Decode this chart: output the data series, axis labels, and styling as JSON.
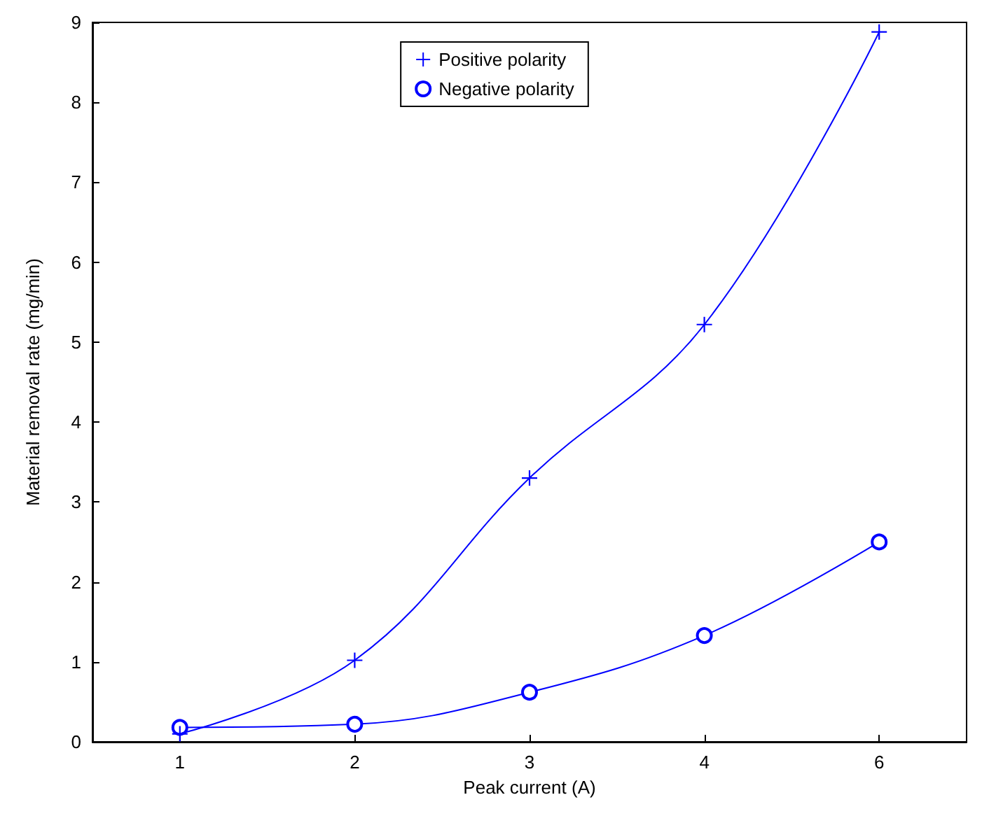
{
  "chart_data": {
    "type": "line",
    "xlabel": "Peak current (A)",
    "ylabel": "Material removal rate (mg/min)",
    "categories": [
      "1",
      "2",
      "3",
      "4",
      "6"
    ],
    "ylim": [
      0,
      9
    ],
    "yticks": [
      0,
      1,
      2,
      3,
      4,
      5,
      6,
      7,
      8,
      9
    ],
    "grid": false,
    "legend": "top",
    "series": [
      {
        "name": "Positive polarity",
        "color": "#0000ff",
        "marker": "cross",
        "values": [
          0.1,
          1.02,
          3.3,
          5.22,
          8.88
        ]
      },
      {
        "name": "Negative polarity",
        "color": "#0000ff",
        "marker": "circle",
        "values": [
          0.18,
          0.22,
          0.62,
          1.33,
          2.5
        ]
      }
    ]
  }
}
